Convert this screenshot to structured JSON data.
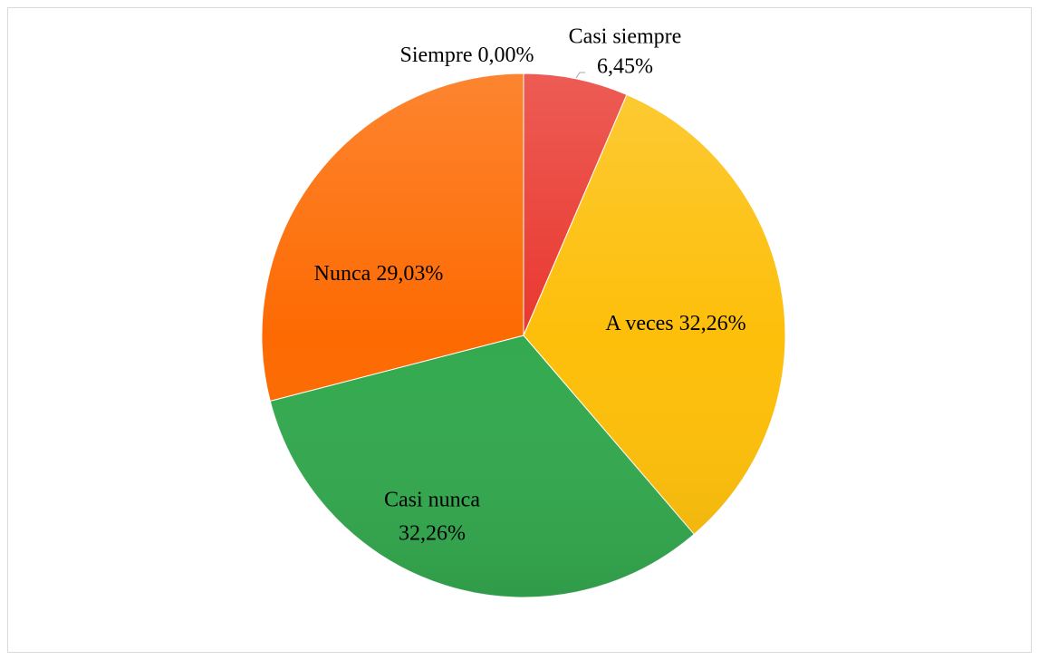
{
  "chart_data": {
    "type": "pie",
    "categories": [
      "Siempre",
      "Casi siempre",
      "A veces",
      "Casi nunca",
      "Nunca"
    ],
    "values": [
      0,
      6.45,
      32.26,
      32.26,
      29.03
    ],
    "value_labels": [
      "0,00%",
      "6,45%",
      "32,26%",
      "32,26%",
      "29,03%"
    ],
    "colors": [
      "#4472c4",
      "#e9382f",
      "#fdbf0a",
      "#34a94f",
      "#fd6a02"
    ]
  }
}
